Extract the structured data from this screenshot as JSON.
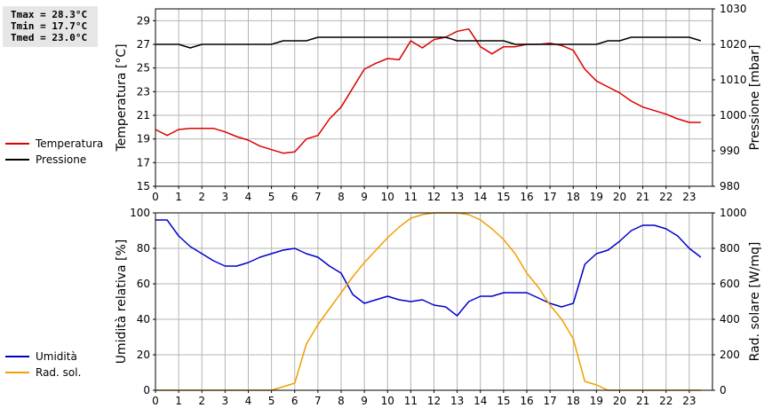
{
  "stats": {
    "tmax": "Tmax = 28.3°C",
    "tmin": "Tmin = 17.7°C",
    "tmed": "Tmed = 23.0°C"
  },
  "legend_top": [
    {
      "label": "Temperatura",
      "color": "#dd0000"
    },
    {
      "label": "Pressione",
      "color": "#000000"
    }
  ],
  "legend_bottom": [
    {
      "label": "Umidità",
      "color": "#0000cc"
    },
    {
      "label": "Rad. sol.",
      "color": "#f0a000"
    }
  ],
  "chart_data": [
    {
      "type": "line",
      "grid": true,
      "xlim": [
        0,
        24
      ],
      "x_ticks": [
        "0",
        "1",
        "2",
        "3",
        "4",
        "5",
        "6",
        "7",
        "8",
        "9",
        "10",
        "11",
        "12",
        "13",
        "14",
        "15",
        "16",
        "17",
        "18",
        "19",
        "20",
        "21",
        "22",
        "23"
      ],
      "ylabel_left": "Temperatura [°C]",
      "ylim_left": [
        15,
        30
      ],
      "y_ticks_left": [
        "15",
        "17",
        "19",
        "21",
        "23",
        "25",
        "27",
        "29"
      ],
      "ylabel_right": "Pressione [mbar]",
      "ylim_right": [
        980,
        1030
      ],
      "y_ticks_right": [
        "980",
        "990",
        "1000",
        "1010",
        "1020",
        "1030"
      ],
      "series": [
        {
          "name": "Temperatura",
          "axis": "left",
          "color": "#dd0000",
          "x": [
            0,
            0.5,
            1,
            1.5,
            2,
            2.5,
            3,
            3.5,
            4,
            4.5,
            5,
            5.5,
            6,
            6.5,
            7,
            7.5,
            8,
            8.5,
            9,
            9.5,
            10,
            10.5,
            11,
            11.5,
            12,
            12.5,
            13,
            13.5,
            14,
            14.5,
            15,
            15.5,
            16,
            16.5,
            17,
            17.5,
            18,
            18.5,
            19,
            19.5,
            20,
            20.5,
            21,
            21.5,
            22,
            22.5,
            23,
            23.5
          ],
          "y": [
            19.8,
            19.3,
            19.8,
            19.9,
            19.9,
            19.9,
            19.6,
            19.2,
            18.9,
            18.4,
            18.1,
            17.8,
            17.9,
            19.0,
            19.3,
            20.7,
            21.7,
            23.3,
            24.9,
            25.4,
            25.8,
            25.7,
            27.3,
            26.7,
            27.4,
            27.6,
            28.1,
            28.3,
            26.8,
            26.2,
            26.8,
            26.8,
            27.0,
            27.0,
            27.1,
            26.9,
            26.5,
            24.9,
            23.9,
            23.4,
            22.9,
            22.2,
            21.7,
            21.4,
            21.1,
            20.7,
            20.4,
            20.4
          ]
        },
        {
          "name": "Pressione",
          "axis": "right",
          "color": "#000000",
          "x": [
            0,
            0.5,
            1,
            1.5,
            2,
            2.5,
            3,
            3.5,
            4,
            4.5,
            5,
            5.5,
            6,
            6.5,
            7,
            7.5,
            8,
            8.5,
            9,
            9.5,
            10,
            10.5,
            11,
            11.5,
            12,
            12.5,
            13,
            13.5,
            14,
            14.5,
            15,
            15.5,
            16,
            16.5,
            17,
            17.5,
            18,
            18.5,
            19,
            19.5,
            20,
            20.5,
            21,
            21.5,
            22,
            22.5,
            23,
            23.5
          ],
          "y": [
            1020,
            1020,
            1020,
            1019,
            1020,
            1020,
            1020,
            1020,
            1020,
            1020,
            1020,
            1021,
            1021,
            1021,
            1022,
            1022,
            1022,
            1022,
            1022,
            1022,
            1022,
            1022,
            1022,
            1022,
            1022,
            1022,
            1021,
            1021,
            1021,
            1021,
            1021,
            1020,
            1020,
            1020,
            1020,
            1020,
            1020,
            1020,
            1020,
            1021,
            1021,
            1022,
            1022,
            1022,
            1022,
            1022,
            1022,
            1021
          ]
        }
      ]
    },
    {
      "type": "line",
      "grid": true,
      "xlim": [
        0,
        24
      ],
      "x_ticks": [
        "0",
        "1",
        "2",
        "3",
        "4",
        "5",
        "6",
        "7",
        "8",
        "9",
        "10",
        "11",
        "12",
        "13",
        "14",
        "15",
        "16",
        "17",
        "18",
        "19",
        "20",
        "21",
        "22",
        "23"
      ],
      "ylabel_left": "Umidità relativa [%]",
      "ylim_left": [
        0,
        100
      ],
      "y_ticks_left": [
        "0",
        "20",
        "40",
        "60",
        "80",
        "100"
      ],
      "ylabel_right": "Rad. solare [W/mq]",
      "ylim_right": [
        0,
        1000
      ],
      "y_ticks_right": [
        "0",
        "200",
        "400",
        "600",
        "800",
        "1000"
      ],
      "series": [
        {
          "name": "Umidità",
          "axis": "left",
          "color": "#0000cc",
          "x": [
            0,
            0.5,
            1,
            1.5,
            2,
            2.5,
            3,
            3.5,
            4,
            4.5,
            5,
            5.5,
            6,
            6.5,
            7,
            7.5,
            8,
            8.5,
            9,
            9.5,
            10,
            10.5,
            11,
            11.5,
            12,
            12.5,
            13,
            13.5,
            14,
            14.5,
            15,
            15.5,
            16,
            16.5,
            17,
            17.5,
            18,
            18.5,
            19,
            19.5,
            20,
            20.5,
            21,
            21.5,
            22,
            22.5,
            23,
            23.5
          ],
          "y": [
            96,
            96,
            87,
            81,
            77,
            73,
            70,
            70,
            72,
            75,
            77,
            79,
            80,
            77,
            75,
            70,
            66,
            54,
            49,
            51,
            53,
            51,
            50,
            51,
            48,
            47,
            42,
            50,
            53,
            53,
            55,
            55,
            55,
            52,
            49,
            47,
            49,
            71,
            77,
            79,
            84,
            90,
            93,
            93,
            91,
            87,
            80,
            75
          ]
        },
        {
          "name": "Rad. sol.",
          "axis": "right",
          "color": "#f0a000",
          "x": [
            0,
            0.5,
            1,
            1.5,
            2,
            2.5,
            3,
            3.5,
            4,
            4.5,
            5,
            5.5,
            6,
            6.5,
            7,
            7.5,
            8,
            8.5,
            9,
            9.5,
            10,
            10.5,
            11,
            11.5,
            12,
            12.5,
            13,
            13.5,
            14,
            14.5,
            15,
            15.5,
            16,
            16.5,
            17,
            17.5,
            18,
            18.5,
            19,
            19.5,
            20,
            20.5,
            21,
            21.5,
            22,
            22.5,
            23,
            23.5
          ],
          "y": [
            0,
            0,
            0,
            0,
            0,
            0,
            0,
            0,
            0,
            0,
            0,
            20,
            40,
            260,
            370,
            460,
            550,
            640,
            720,
            790,
            860,
            920,
            970,
            990,
            1000,
            1000,
            1000,
            990,
            960,
            910,
            850,
            770,
            660,
            580,
            480,
            400,
            290,
            50,
            30,
            0,
            0,
            0,
            0,
            0,
            0,
            0,
            0,
            0
          ]
        }
      ]
    }
  ]
}
